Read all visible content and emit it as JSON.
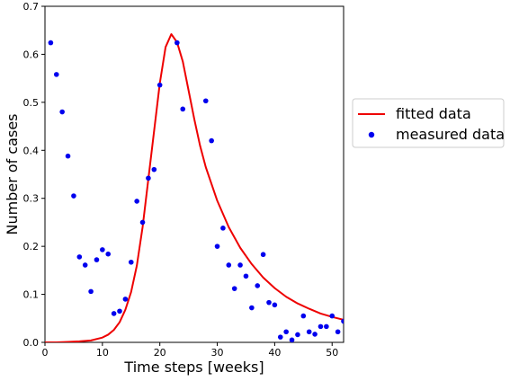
{
  "chart_data": {
    "type": "line",
    "xlabel": "Time steps [weeks]",
    "ylabel": "Number of cases",
    "xlim": [
      0,
      52
    ],
    "ylim": [
      0,
      0.7
    ],
    "xticks": [
      "0",
      "10",
      "20",
      "30",
      "40",
      "50"
    ],
    "yticks": [
      "0.0",
      "0.1",
      "0.2",
      "0.3",
      "0.4",
      "0.5",
      "0.6",
      "0.7"
    ],
    "grid": false,
    "legend_position": "right-outside",
    "series": [
      {
        "name": "fitted data",
        "kind": "line",
        "color": "#ee0000",
        "x": [
          0,
          2,
          4,
          6,
          8,
          10,
          11,
          12,
          13,
          14,
          15,
          16,
          17,
          18,
          19,
          20,
          21,
          22,
          23,
          24,
          25,
          26,
          27,
          28,
          30,
          32,
          34,
          36,
          38,
          40,
          42,
          44,
          46,
          48,
          50,
          52
        ],
        "y": [
          0.0,
          0.0,
          0.001,
          0.002,
          0.004,
          0.01,
          0.016,
          0.026,
          0.042,
          0.068,
          0.105,
          0.16,
          0.24,
          0.34,
          0.44,
          0.54,
          0.615,
          0.642,
          0.625,
          0.585,
          0.525,
          0.465,
          0.41,
          0.365,
          0.295,
          0.24,
          0.197,
          0.163,
          0.135,
          0.113,
          0.095,
          0.081,
          0.07,
          0.06,
          0.053,
          0.047
        ]
      },
      {
        "name": "measured data",
        "kind": "scatter",
        "color": "#0000ee",
        "x": [
          1,
          2,
          3,
          4,
          5,
          6,
          7,
          8,
          9,
          10,
          11,
          12,
          13,
          14,
          15,
          16,
          17,
          18,
          19,
          20,
          23,
          24,
          28,
          29,
          30,
          31,
          32,
          33,
          34,
          35,
          36,
          37,
          38,
          39,
          40,
          41,
          42,
          43,
          44,
          45,
          46,
          47,
          48,
          49,
          50,
          51,
          52
        ],
        "y": [
          0.624,
          0.558,
          0.48,
          0.388,
          0.305,
          0.178,
          0.161,
          0.106,
          0.172,
          0.193,
          0.184,
          0.06,
          0.065,
          0.09,
          0.167,
          0.294,
          0.25,
          0.342,
          0.36,
          0.536,
          0.624,
          0.486,
          0.503,
          0.42,
          0.2,
          0.238,
          0.161,
          0.112,
          0.161,
          0.138,
          0.072,
          0.118,
          0.183,
          0.083,
          0.078,
          0.011,
          0.022,
          0.005,
          0.016,
          0.055,
          0.022,
          0.017,
          0.033,
          0.033,
          0.055,
          0.022,
          0.044
        ]
      }
    ]
  }
}
